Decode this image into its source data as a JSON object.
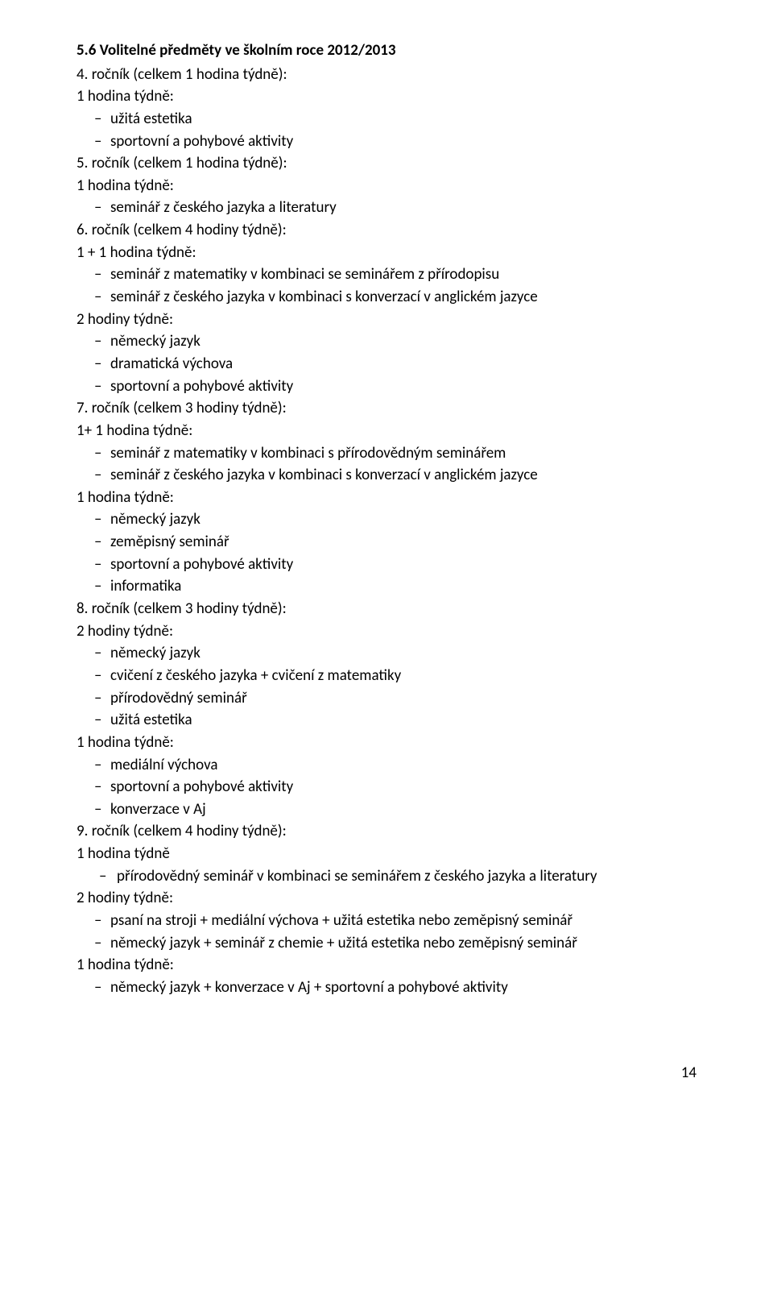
{
  "heading_main": "5.6 Volitelné předměty ve školním roce 2012/2013",
  "g4": {
    "title": "4. ročník (celkem 1 hodina týdně):",
    "sub": "1 hodina týdně:",
    "items": [
      "užitá estetika",
      "sportovní a pohybové aktivity"
    ]
  },
  "g5": {
    "title": "5. ročník (celkem 1 hodina týdně):",
    "sub": "1 hodina týdně:",
    "items": [
      "seminář z českého jazyka a literatury"
    ]
  },
  "g6": {
    "title": "6. ročník (celkem 4 hodiny týdně):",
    "sub1": "1 + 1 hodina týdně:",
    "items1": [
      "seminář z matematiky v kombinaci se seminářem z přírodopisu",
      "seminář z českého jazyka v kombinaci s konverzací v anglickém jazyce"
    ],
    "sub2": "2 hodiny týdně:",
    "items2": [
      "německý jazyk",
      "dramatická výchova",
      "sportovní a pohybové aktivity"
    ]
  },
  "g7": {
    "title": "7. ročník (celkem 3 hodiny týdně):",
    "sub1": "1+ 1 hodina týdně:",
    "items1": [
      "seminář z matematiky v kombinaci s přírodovědným seminářem",
      "seminář z českého jazyka v kombinaci s konverzací v anglickém jazyce"
    ],
    "sub2": "1 hodina týdně:",
    "items2": [
      "německý jazyk",
      "zeměpisný seminář",
      "sportovní a pohybové aktivity",
      "informatika"
    ]
  },
  "g8": {
    "title": "8. ročník (celkem 3 hodiny týdně):",
    "sub1": "2 hodiny týdně:",
    "items1": [
      "německý jazyk",
      "cvičení z českého jazyka + cvičení z matematiky",
      "přírodovědný seminář",
      "užitá estetika"
    ],
    "sub2": "1 hodina týdně:",
    "items2": [
      "mediální výchova",
      "sportovní a pohybové aktivity",
      "konverzace v Aj"
    ]
  },
  "g9": {
    "title": "9. ročník (celkem 4 hodiny týdně):",
    "sub1": "1 hodina týdně",
    "items1": [
      "přírodovědný seminář v kombinaci se seminářem z českého jazyka a literatury"
    ],
    "sub2": "2 hodiny týdně:",
    "items2": [
      "psaní na stroji + mediální výchova + užitá estetika nebo zeměpisný seminář",
      "německý jazyk + seminář z chemie + užitá estetika nebo zeměpisný seminář"
    ],
    "sub3": "1 hodina týdně:",
    "items3": [
      "německý jazyk + konverzace v Aj + sportovní a pohybové aktivity"
    ]
  },
  "page_number": "14"
}
